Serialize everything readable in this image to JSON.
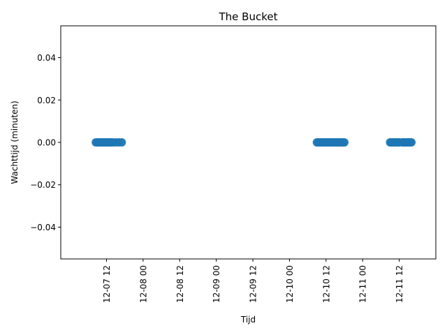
{
  "chart_data": {
    "type": "scatter",
    "title": "The Bucket",
    "xlabel": "Tijd",
    "ylabel": "Wachttijd (minuten)",
    "x_axis_kind": "datetime",
    "x_range": [
      "2024-12-06T21:00:00",
      "2024-12-12T00:00:00"
    ],
    "ylim": [
      -0.055,
      0.055
    ],
    "grid": false,
    "colors": {
      "points": "#1f77b4"
    },
    "x_ticks": [
      {
        "value": "2024-12-07T12:00:00",
        "label": "12-07 12"
      },
      {
        "value": "2024-12-08T00:00:00",
        "label": "12-08 00"
      },
      {
        "value": "2024-12-08T12:00:00",
        "label": "12-08 12"
      },
      {
        "value": "2024-12-09T00:00:00",
        "label": "12-09 00"
      },
      {
        "value": "2024-12-09T12:00:00",
        "label": "12-09 12"
      },
      {
        "value": "2024-12-10T00:00:00",
        "label": "12-10 00"
      },
      {
        "value": "2024-12-10T12:00:00",
        "label": "12-10 12"
      },
      {
        "value": "2024-12-11T00:00:00",
        "label": "12-11 00"
      },
      {
        "value": "2024-12-11T12:00:00",
        "label": "12-11 12"
      }
    ],
    "y_ticks": [
      {
        "value": 0.04,
        "label": "0.04"
      },
      {
        "value": 0.02,
        "label": "0.02"
      },
      {
        "value": 0.0,
        "label": "0.00"
      },
      {
        "value": -0.02,
        "label": "−0.02"
      },
      {
        "value": -0.04,
        "label": "−0.04"
      }
    ],
    "series": [
      {
        "x": [
          "2024-12-07T08:30:00",
          "2024-12-07T09:00:00",
          "2024-12-07T09:30:00",
          "2024-12-07T10:00:00",
          "2024-12-07T10:30:00",
          "2024-12-07T11:00:00",
          "2024-12-07T11:30:00",
          "2024-12-07T12:00:00",
          "2024-12-07T12:30:00",
          "2024-12-07T13:00:00",
          "2024-12-07T13:30:00",
          "2024-12-07T14:00:00",
          "2024-12-07T15:00:00",
          "2024-12-07T16:00:00",
          "2024-12-07T17:00:00",
          "2024-12-10T09:00:00",
          "2024-12-10T09:30:00",
          "2024-12-10T10:00:00",
          "2024-12-10T10:30:00",
          "2024-12-10T11:00:00",
          "2024-12-10T11:30:00",
          "2024-12-10T12:00:00",
          "2024-12-10T12:30:00",
          "2024-12-10T13:00:00",
          "2024-12-10T13:30:00",
          "2024-12-10T14:00:00",
          "2024-12-10T14:30:00",
          "2024-12-10T15:00:00",
          "2024-12-10T15:30:00",
          "2024-12-10T16:00:00",
          "2024-12-10T16:30:00",
          "2024-12-10T17:00:00",
          "2024-12-10T17:30:00",
          "2024-12-10T18:00:00",
          "2024-12-11T09:00:00",
          "2024-12-11T09:30:00",
          "2024-12-11T10:00:00",
          "2024-12-11T10:30:00",
          "2024-12-11T11:00:00",
          "2024-12-11T11:30:00",
          "2024-12-11T12:00:00",
          "2024-12-11T13:00:00",
          "2024-12-11T13:30:00",
          "2024-12-11T14:00:00",
          "2024-12-11T14:30:00",
          "2024-12-11T15:00:00",
          "2024-12-11T15:30:00",
          "2024-12-11T16:00:00"
        ],
        "y": [
          0,
          0,
          0,
          0,
          0,
          0,
          0,
          0,
          0,
          0,
          0,
          0,
          0,
          0,
          0,
          0,
          0,
          0,
          0,
          0,
          0,
          0,
          0,
          0,
          0,
          0,
          0,
          0,
          0,
          0,
          0,
          0,
          0,
          0,
          0,
          0,
          0,
          0,
          0,
          0,
          0,
          0,
          0,
          0,
          0,
          0,
          0,
          0
        ]
      }
    ]
  }
}
